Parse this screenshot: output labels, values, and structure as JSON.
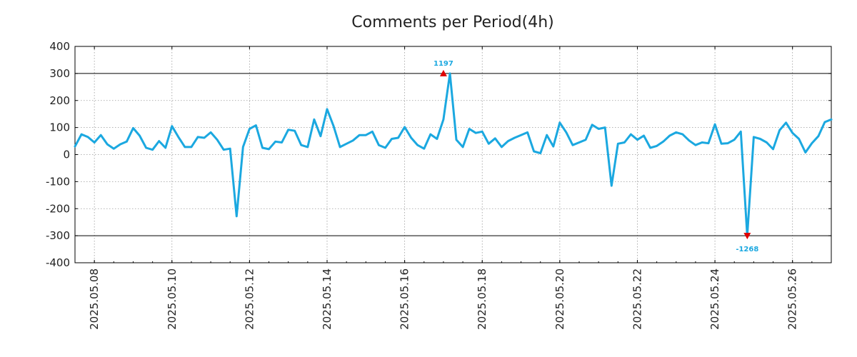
{
  "chart_data": {
    "type": "line",
    "title": "Comments per Period(4h)",
    "xlabel": "",
    "ylabel": "",
    "ylim": [
      -400,
      400
    ],
    "y_ticks": [
      400,
      300,
      200,
      100,
      0,
      -100,
      -200,
      -300,
      -400
    ],
    "y_tick_labels": [
      "400",
      "300",
      "200",
      "100",
      "0",
      "-100",
      "-200",
      "-300",
      "-400"
    ],
    "x_tick_labels": [
      "2025.05.08",
      "2025.05.10",
      "2025.05.12",
      "2025.05.14",
      "2025.05.16",
      "2025.05.18",
      "2025.05.20",
      "2025.05.22",
      "2025.05.24",
      "2025.05.26"
    ],
    "x_start": "2025.05.07 12:00",
    "x_end": "2025.05.27 00:00",
    "grid": true,
    "reference_lines": [
      300,
      -300
    ],
    "series": [
      {
        "color": "#1ba8e0",
        "x": [
          "2025.05.07 12:00",
          "2025.05.07 16:00",
          "2025.05.07 20:00",
          "2025.05.08 00:00",
          "2025.05.08 04:00",
          "2025.05.08 08:00",
          "2025.05.08 12:00",
          "2025.05.08 16:00",
          "2025.05.08 20:00",
          "2025.05.09 00:00",
          "2025.05.09 04:00",
          "2025.05.09 08:00",
          "2025.05.09 12:00",
          "2025.05.09 16:00",
          "2025.05.09 20:00",
          "2025.05.10 00:00",
          "2025.05.10 04:00",
          "2025.05.10 08:00",
          "2025.05.10 12:00",
          "2025.05.10 16:00",
          "2025.05.10 20:00",
          "2025.05.11 00:00",
          "2025.05.11 04:00",
          "2025.05.11 08:00",
          "2025.05.11 12:00",
          "2025.05.11 16:00",
          "2025.05.11 20:00",
          "2025.05.12 00:00",
          "2025.05.12 04:00",
          "2025.05.12 08:00",
          "2025.05.12 12:00",
          "2025.05.12 16:00",
          "2025.05.12 20:00",
          "2025.05.13 00:00",
          "2025.05.13 04:00",
          "2025.05.13 08:00",
          "2025.05.13 12:00",
          "2025.05.13 16:00",
          "2025.05.13 20:00",
          "2025.05.14 00:00",
          "2025.05.14 04:00",
          "2025.05.14 08:00",
          "2025.05.14 12:00",
          "2025.05.14 16:00",
          "2025.05.14 20:00",
          "2025.05.15 00:00",
          "2025.05.15 04:00",
          "2025.05.15 08:00",
          "2025.05.15 12:00",
          "2025.05.15 16:00",
          "2025.05.15 20:00",
          "2025.05.16 00:00",
          "2025.05.16 04:00",
          "2025.05.16 08:00",
          "2025.05.16 12:00",
          "2025.05.16 16:00",
          "2025.05.16 20:00",
          "2025.05.17 00:00",
          "2025.05.17 04:00",
          "2025.05.17 08:00",
          "2025.05.17 12:00",
          "2025.05.17 16:00",
          "2025.05.17 20:00",
          "2025.05.18 00:00",
          "2025.05.18 04:00",
          "2025.05.18 08:00",
          "2025.05.18 12:00",
          "2025.05.18 16:00",
          "2025.05.18 20:00",
          "2025.05.19 00:00",
          "2025.05.19 04:00",
          "2025.05.19 08:00",
          "2025.05.19 12:00",
          "2025.05.19 16:00",
          "2025.05.19 20:00",
          "2025.05.20 00:00",
          "2025.05.20 04:00",
          "2025.05.20 08:00",
          "2025.05.20 12:00",
          "2025.05.20 16:00",
          "2025.05.20 20:00",
          "2025.05.21 00:00",
          "2025.05.21 04:00",
          "2025.05.21 08:00",
          "2025.05.21 12:00",
          "2025.05.21 16:00",
          "2025.05.21 20:00",
          "2025.05.22 00:00",
          "2025.05.22 04:00",
          "2025.05.22 08:00",
          "2025.05.22 12:00",
          "2025.05.22 16:00",
          "2025.05.22 20:00",
          "2025.05.23 00:00",
          "2025.05.23 04:00",
          "2025.05.23 08:00",
          "2025.05.23 12:00",
          "2025.05.23 16:00",
          "2025.05.23 20:00",
          "2025.05.24 00:00",
          "2025.05.24 04:00",
          "2025.05.24 08:00",
          "2025.05.24 12:00",
          "2025.05.24 16:00",
          "2025.05.24 20:00",
          "2025.05.25 00:00",
          "2025.05.25 04:00",
          "2025.05.25 08:00",
          "2025.05.25 12:00",
          "2025.05.25 16:00",
          "2025.05.25 20:00",
          "2025.05.26 00:00",
          "2025.05.26 04:00",
          "2025.05.26 08:00",
          "2025.05.26 12:00",
          "2025.05.26 16:00",
          "2025.05.26 20:00",
          "2025.05.27 00:00"
        ],
        "y": [
          30,
          75,
          65,
          45,
          72,
          38,
          22,
          38,
          48,
          98,
          70,
          25,
          18,
          50,
          25,
          105,
          65,
          28,
          28,
          65,
          62,
          82,
          55,
          18,
          22,
          -228,
          28,
          95,
          108,
          25,
          20,
          48,
          45,
          92,
          88,
          35,
          28,
          130,
          68,
          168,
          105,
          28,
          40,
          52,
          72,
          72,
          85,
          35,
          25,
          58,
          62,
          102,
          62,
          35,
          22,
          75,
          58,
          130,
          300,
          55,
          28,
          95,
          80,
          85,
          40,
          60,
          28,
          50,
          62,
          72,
          82,
          12,
          5,
          72,
          30,
          118,
          82,
          35,
          45,
          55,
          110,
          95,
          100,
          -115,
          40,
          45,
          75,
          55,
          70,
          25,
          32,
          48,
          70,
          82,
          75,
          52,
          35,
          45,
          42,
          112,
          40,
          42,
          55,
          85,
          -300,
          65,
          58,
          45,
          20,
          90,
          118,
          80,
          58,
          8,
          42,
          68,
          120,
          130
        ]
      }
    ],
    "annotations": [
      {
        "label": "1197",
        "x": "2025.05.17 00:00",
        "y": 300,
        "color": "#1ba8e0",
        "marker": "triangle-up",
        "marker_color": "#e00000"
      },
      {
        "label": "-1268",
        "x": "2025.05.24 20:00",
        "y": -300,
        "color": "#1ba8e0",
        "marker": "triangle-down",
        "marker_color": "#e00000"
      }
    ]
  }
}
